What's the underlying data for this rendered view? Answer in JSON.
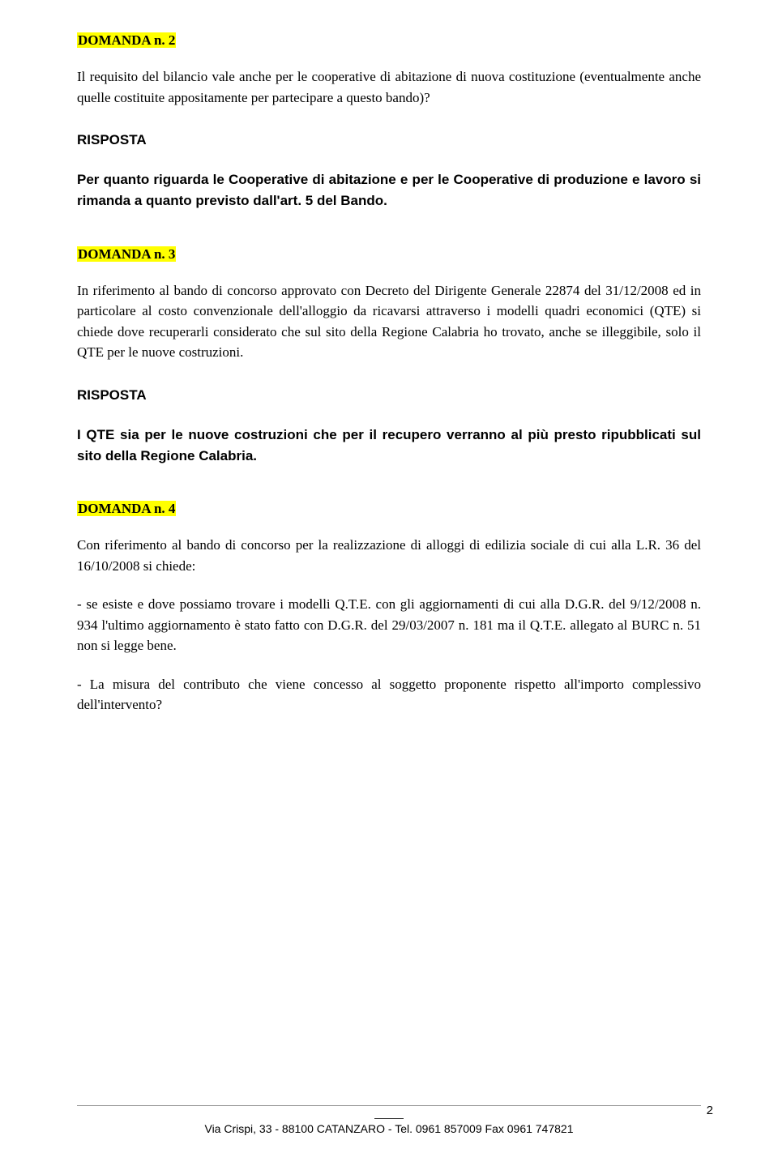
{
  "sections": [
    {
      "heading": "DOMANDA n. 2",
      "question_text": "Il requisito del bilancio vale anche per le cooperative di abitazione di nuova costituzione (eventualmente anche quelle costituite appositamente per partecipare a questo bando)?",
      "risposta_label": "RISPOSTA",
      "answer_text": "Per quanto riguarda le Cooperative di abitazione e per le Cooperative di produzione e lavoro si rimanda a quanto previsto dall'art. 5 del Bando."
    },
    {
      "heading": "DOMANDA n. 3",
      "question_text": "In riferimento al bando di concorso approvato con Decreto del Dirigente Generale 22874 del 31/12/2008 ed in particolare al costo convenzionale dell'alloggio da ricavarsi attraverso i modelli quadri economici (QTE) si chiede dove recuperarli considerato che sul sito della Regione Calabria ho trovato, anche se illeggibile, solo il QTE per le nuove costruzioni.",
      "risposta_label": "RISPOSTA",
      "answer_text": "I QTE sia per le nuove costruzioni che per il recupero verranno al più presto ripubblicati sul sito della Regione Calabria."
    },
    {
      "heading": "DOMANDA n. 4",
      "question_paragraphs": [
        "Con riferimento al bando di concorso per la realizzazione di alloggi di edilizia sociale di cui alla L.R. 36 del 16/10/2008 si chiede:",
        "- se esiste e dove possiamo trovare i modelli Q.T.E. con gli aggiornamenti di cui alla D.G.R. del 9/12/2008 n. 934 l'ultimo aggiornamento è stato fatto con D.G.R. del 29/03/2007 n. 181 ma il Q.T.E. allegato al BURC n. 51 non si legge bene.",
        "- La misura del contributo che viene concesso al soggetto proponente rispetto all'importo complessivo dell'intervento?"
      ]
    }
  ],
  "footer": "Via Crispi, 33 - 88100 CATANZARO - Tel. 0961 857009 Fax 0961 747821",
  "page_number": "2",
  "colors": {
    "highlight_bg": "#ffff00",
    "text": "#000000",
    "background": "#ffffff",
    "rule": "#999999"
  }
}
